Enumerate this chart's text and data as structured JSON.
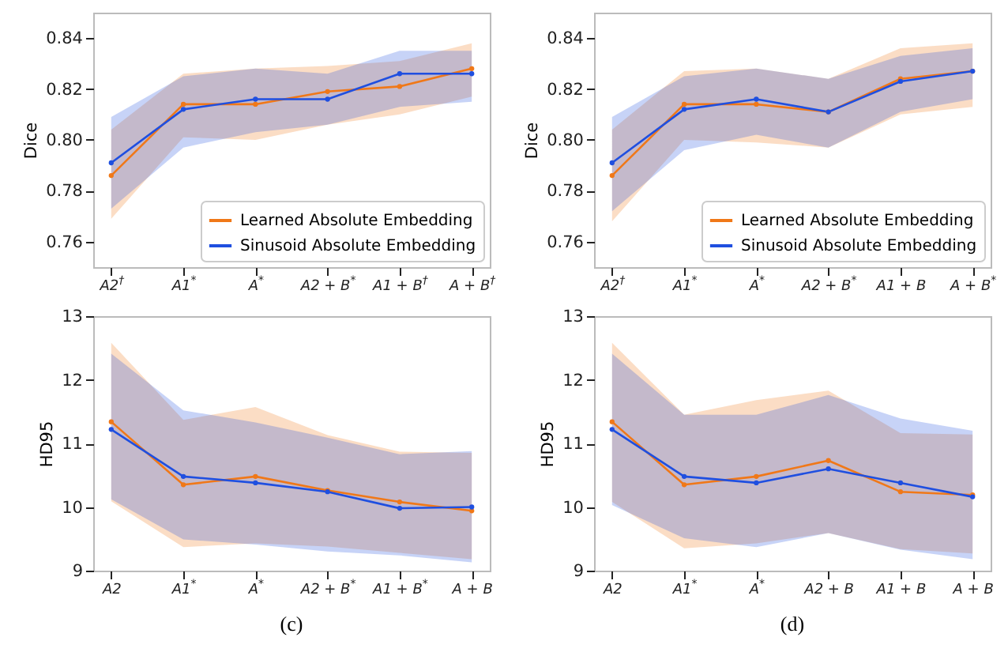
{
  "chart_data": [
    {
      "type": "line",
      "ylabel": "Dice",
      "categories": [
        "A2$^{†}$",
        "A1$^{*}$",
        "A$^{*}$",
        "A2 + B$^{*}$",
        "A1 + B$^{†}$",
        "A + B$^{†}$"
      ],
      "ylim": [
        0.75,
        0.85
      ],
      "yticks": [
        0.76,
        0.78,
        {
          "value": 0.8,
          "label": "0.80"
        },
        0.82,
        0.84
      ],
      "grid": false,
      "legend": "bottom right",
      "marker": "circle",
      "series": [
        {
          "name": "Learned Absolute Embedding",
          "color": "#f07818",
          "values": [
            0.786,
            0.814,
            0.814,
            0.819,
            0.821,
            0.828
          ],
          "lower": [
            0.769,
            0.801,
            0.8,
            0.806,
            0.81,
            0.817
          ],
          "upper": [
            0.804,
            0.826,
            0.828,
            0.829,
            0.831,
            0.838
          ]
        },
        {
          "name": "Sinusoid Absolute Embedding",
          "color": "#1f4fe0",
          "values": [
            0.791,
            0.812,
            0.816,
            0.816,
            0.826,
            0.826
          ],
          "lower": [
            0.773,
            0.797,
            0.803,
            0.806,
            0.813,
            0.815
          ],
          "upper": [
            0.809,
            0.825,
            0.828,
            0.826,
            0.835,
            0.835
          ]
        }
      ]
    },
    {
      "type": "line",
      "ylabel": "Dice",
      "categories": [
        "A2$^{†}$",
        "A1$^{*}$",
        "A$^{*}$",
        "A2 + B$^{*}$",
        "A1 + B",
        "A + B$^{*}$"
      ],
      "ylim": [
        0.75,
        0.85
      ],
      "yticks": [
        0.76,
        0.78,
        {
          "value": 0.8,
          "label": "0.80"
        },
        0.82,
        0.84
      ],
      "grid": false,
      "legend": "bottom right",
      "marker": "circle",
      "series": [
        {
          "name": "Learned Absolute Embedding",
          "color": "#f07818",
          "values": [
            0.786,
            0.814,
            0.814,
            0.811,
            0.824,
            0.827
          ],
          "lower": [
            0.768,
            0.8,
            0.799,
            0.797,
            0.81,
            0.813
          ],
          "upper": [
            0.804,
            0.827,
            0.828,
            0.824,
            0.836,
            0.838
          ]
        },
        {
          "name": "Sinusoid Absolute Embedding",
          "color": "#1f4fe0",
          "values": [
            0.791,
            0.812,
            0.816,
            0.811,
            0.823,
            0.827
          ],
          "lower": [
            0.772,
            0.796,
            0.802,
            0.797,
            0.811,
            0.816
          ],
          "upper": [
            0.809,
            0.825,
            0.828,
            0.824,
            0.833,
            0.836
          ]
        }
      ]
    },
    {
      "type": "line",
      "ylabel": "HD95",
      "categories": [
        "A2",
        "A1$^{*}$",
        "A$^{*}$",
        "A2 + B$^{*}$",
        "A1 + B$^{*}$",
        "A + B"
      ],
      "ylim": [
        9,
        13
      ],
      "yticks": [
        9,
        10,
        11,
        12,
        13
      ],
      "grid": false,
      "marker": "circle",
      "annotations": [
        "(c)"
      ],
      "series": [
        {
          "color": "#f07818",
          "values": [
            11.34,
            10.35,
            10.48,
            10.26,
            10.08,
            9.94
          ],
          "lower": [
            10.09,
            9.37,
            9.43,
            9.38,
            9.28,
            9.18
          ],
          "upper": [
            12.58,
            11.37,
            11.57,
            11.13,
            10.87,
            10.85
          ]
        },
        {
          "color": "#1f4fe0",
          "values": [
            11.22,
            10.48,
            10.38,
            10.24,
            9.98,
            10.0
          ],
          "lower": [
            10.12,
            9.49,
            9.41,
            9.3,
            9.24,
            9.13
          ],
          "upper": [
            12.41,
            11.52,
            11.33,
            11.09,
            10.83,
            10.88
          ]
        }
      ]
    },
    {
      "type": "line",
      "ylabel": "HD95",
      "categories": [
        "A2",
        "A1$^{*}$",
        "A$^{*}$",
        "A2 + B",
        "A1 + B",
        "A + B"
      ],
      "ylim": [
        9,
        13
      ],
      "yticks": [
        9,
        10,
        11,
        12,
        13
      ],
      "grid": false,
      "marker": "circle",
      "annotations": [
        "(d)"
      ],
      "series": [
        {
          "color": "#f07818",
          "values": [
            11.34,
            10.35,
            10.48,
            10.73,
            10.24,
            10.19
          ],
          "lower": [
            10.08,
            9.35,
            9.43,
            9.59,
            9.34,
            9.27
          ],
          "upper": [
            12.58,
            11.45,
            11.68,
            11.83,
            11.16,
            11.14
          ]
        },
        {
          "color": "#1f4fe0",
          "values": [
            11.22,
            10.48,
            10.38,
            10.6,
            10.38,
            10.16
          ],
          "lower": [
            10.03,
            9.51,
            9.37,
            9.59,
            9.33,
            9.18
          ],
          "upper": [
            12.41,
            11.45,
            11.45,
            11.76,
            11.39,
            11.2
          ]
        }
      ]
    }
  ]
}
